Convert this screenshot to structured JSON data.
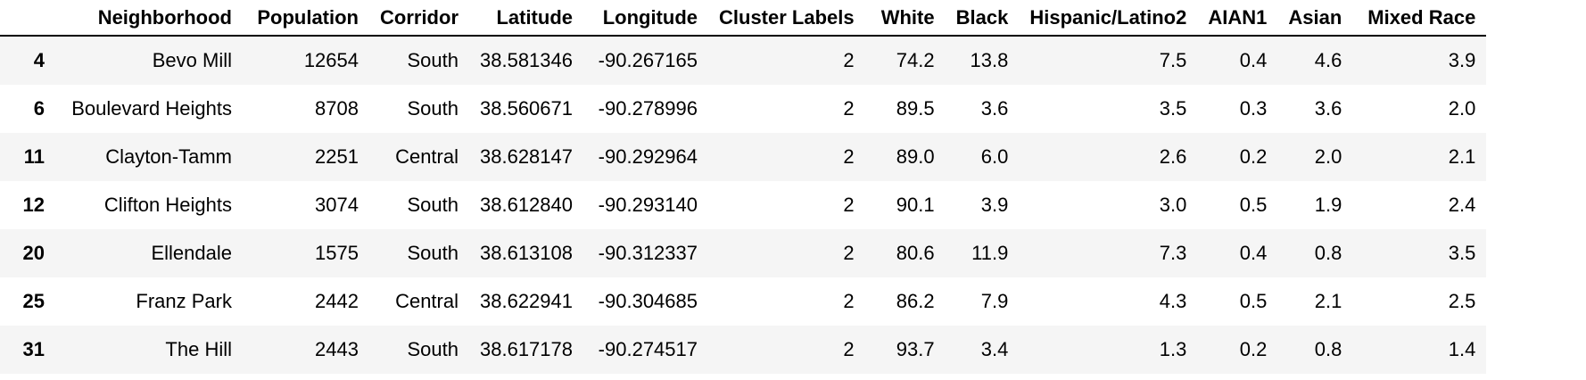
{
  "columns": [
    "",
    "Neighborhood",
    "Population",
    "Corridor",
    "Latitude",
    "Longitude",
    "Cluster Labels",
    "White",
    "Black",
    "Hispanic/Latino2",
    "AIAN1",
    "Asian",
    "Mixed Race"
  ],
  "rows": [
    {
      "index": "4",
      "cells": [
        "Bevo Mill",
        "12654",
        "South",
        "38.581346",
        "-90.267165",
        "2",
        "74.2",
        "13.8",
        "7.5",
        "0.4",
        "4.6",
        "3.9"
      ]
    },
    {
      "index": "6",
      "cells": [
        "Boulevard Heights",
        "8708",
        "South",
        "38.560671",
        "-90.278996",
        "2",
        "89.5",
        "3.6",
        "3.5",
        "0.3",
        "3.6",
        "2.0"
      ]
    },
    {
      "index": "11",
      "cells": [
        "Clayton-Tamm",
        "2251",
        "Central",
        "38.628147",
        "-90.292964",
        "2",
        "89.0",
        "6.0",
        "2.6",
        "0.2",
        "2.0",
        "2.1"
      ]
    },
    {
      "index": "12",
      "cells": [
        "Clifton Heights",
        "3074",
        "South",
        "38.612840",
        "-90.293140",
        "2",
        "90.1",
        "3.9",
        "3.0",
        "0.5",
        "1.9",
        "2.4"
      ]
    },
    {
      "index": "20",
      "cells": [
        "Ellendale",
        "1575",
        "South",
        "38.613108",
        "-90.312337",
        "2",
        "80.6",
        "11.9",
        "7.3",
        "0.4",
        "0.8",
        "3.5"
      ]
    },
    {
      "index": "25",
      "cells": [
        "Franz Park",
        "2442",
        "Central",
        "38.622941",
        "-90.304685",
        "2",
        "86.2",
        "7.9",
        "4.3",
        "0.5",
        "2.1",
        "2.5"
      ]
    },
    {
      "index": "31",
      "cells": [
        "The Hill",
        "2443",
        "South",
        "38.617178",
        "-90.274517",
        "2",
        "93.7",
        "3.4",
        "1.3",
        "0.2",
        "0.8",
        "1.4"
      ]
    }
  ]
}
